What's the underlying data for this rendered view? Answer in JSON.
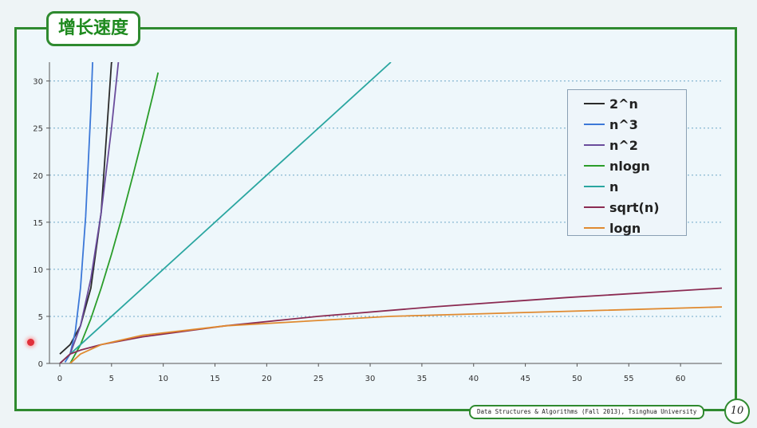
{
  "slide": {
    "title": "增长速度",
    "footer": "Data Structures & Algorithms (Fall 2013), Tsinghua University",
    "page_number": "10"
  },
  "chart_data": {
    "type": "line",
    "title": "增长速度",
    "xlabel": "",
    "ylabel": "",
    "xlim": [
      -1,
      64
    ],
    "ylim": [
      0,
      32
    ],
    "x_ticks": [
      0,
      5,
      10,
      15,
      20,
      25,
      30,
      35,
      40,
      45,
      50,
      55,
      60
    ],
    "y_ticks": [
      0,
      5,
      10,
      15,
      20,
      25,
      30
    ],
    "grid": "horizontal dotted",
    "legend_position": "top-right",
    "series": [
      {
        "name": "2^n",
        "color": "#2b2b2b",
        "x": [
          0,
          1,
          2,
          3,
          4,
          5,
          5.1
        ],
        "y": [
          1,
          2,
          4,
          8,
          16,
          32,
          32
        ]
      },
      {
        "name": "n^3",
        "color": "#3c78d8",
        "x": [
          0.5,
          1,
          1.5,
          2,
          2.5,
          3,
          3.17
        ],
        "y": [
          0.125,
          1,
          3.375,
          8,
          15.6,
          27,
          32
        ]
      },
      {
        "name": "n^2",
        "color": "#6a4c9c",
        "x": [
          1,
          2,
          3,
          4,
          5,
          5.66
        ],
        "y": [
          1,
          4,
          9,
          16,
          25,
          32
        ]
      },
      {
        "name": "nlogn",
        "color": "#2a9d2a",
        "x": [
          1,
          2,
          3,
          4,
          5,
          6,
          7,
          8,
          9,
          9.5
        ],
        "y": [
          0,
          2,
          4.75,
          8,
          11.6,
          15.5,
          19.7,
          24,
          28.5,
          30.9
        ]
      },
      {
        "name": "n",
        "color": "#2aa6a0",
        "x": [
          0,
          32
        ],
        "y": [
          0,
          32
        ]
      },
      {
        "name": "sqrt(n)",
        "color": "#8b2b52",
        "x": [
          0,
          1,
          2,
          4,
          8,
          16,
          25,
          36,
          49,
          64
        ],
        "y": [
          0,
          1,
          1.41,
          2,
          2.83,
          4,
          5,
          6,
          7,
          8
        ]
      },
      {
        "name": "logn",
        "color": "#e08a30",
        "x": [
          1,
          2,
          4,
          8,
          16,
          32,
          64
        ],
        "y": [
          0,
          1,
          2,
          3,
          4,
          5,
          6
        ]
      }
    ]
  }
}
